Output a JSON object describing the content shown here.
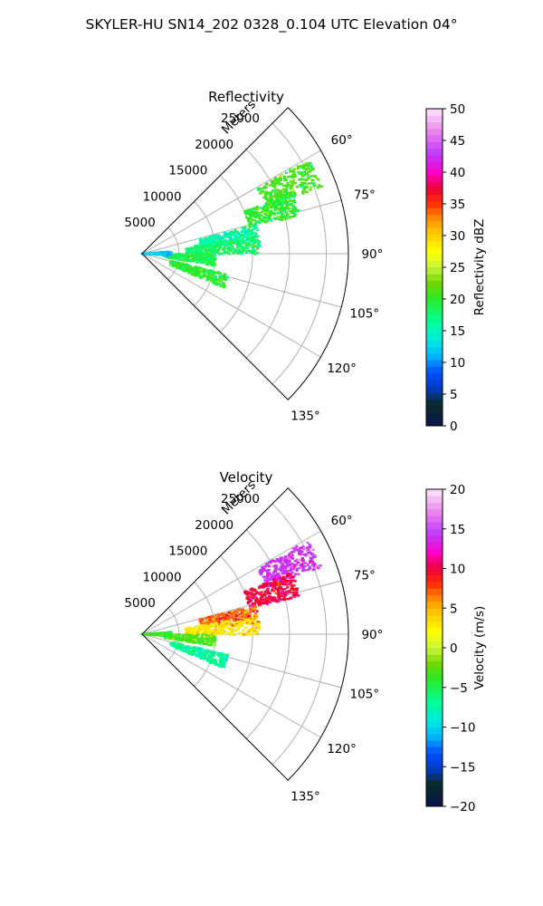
{
  "figure_title": "SKYLER-HU  SN14_202  0328_0.104 UTC Elevation 04°",
  "chart_data": [
    {
      "type": "heatmap",
      "projection": "polar-sector",
      "title": "Reflectivity",
      "radial_axis_label": "Meters",
      "radial_ticks": [
        5000,
        10000,
        15000,
        20000,
        25000
      ],
      "radial_tick_labels": [
        "5000",
        "10000",
        "15000",
        "20000",
        "25000"
      ],
      "rlim": [
        0,
        28000
      ],
      "azimuth_range_deg": [
        45,
        135
      ],
      "azimuth_ticks_deg": [
        60,
        75,
        90,
        105,
        120,
        135
      ],
      "azimuth_tick_labels": [
        "60°",
        "75°",
        "90°",
        "105°",
        "120°",
        "135°"
      ],
      "grid": true,
      "colorbar": {
        "label": "Reflectivity dBZ",
        "range": [
          0,
          50
        ],
        "ticks": [
          0,
          5,
          10,
          15,
          20,
          25,
          30,
          35,
          40,
          45,
          50
        ],
        "tick_labels": [
          "0",
          "5",
          "10",
          "15",
          "20",
          "25",
          "30",
          "35",
          "40",
          "45",
          "50"
        ]
      },
      "echo_regions": [
        {
          "az": 65,
          "r": [
            18000,
            26000
          ],
          "value": 21
        },
        {
          "az": 72,
          "r": [
            15000,
            22000
          ],
          "value": 20
        },
        {
          "az": 80,
          "r": [
            8000,
            16000
          ],
          "value": 16
        },
        {
          "az": 86,
          "r": [
            6000,
            16000
          ],
          "value": 18
        },
        {
          "az": 95,
          "r": [
            3000,
            10000
          ],
          "value": 19
        },
        {
          "az": 108,
          "r": [
            4000,
            12000
          ],
          "value": 20
        },
        {
          "az": 90,
          "r": [
            0,
            4000
          ],
          "value": 12
        }
      ]
    },
    {
      "type": "heatmap",
      "projection": "polar-sector",
      "title": "Velocity",
      "radial_axis_label": "Meters",
      "radial_ticks": [
        5000,
        10000,
        15000,
        20000,
        25000
      ],
      "radial_tick_labels": [
        "5000",
        "10000",
        "15000",
        "20000",
        "25000"
      ],
      "rlim": [
        0,
        28000
      ],
      "azimuth_range_deg": [
        45,
        135
      ],
      "azimuth_ticks_deg": [
        60,
        75,
        90,
        105,
        120,
        135
      ],
      "azimuth_tick_labels": [
        "60°",
        "75°",
        "90°",
        "105°",
        "120°",
        "135°"
      ],
      "grid": true,
      "colorbar": {
        "label": "Velocity (m/s)",
        "range": [
          -20,
          20
        ],
        "ticks": [
          -20,
          -15,
          -10,
          -5,
          0,
          5,
          10,
          15,
          20
        ],
        "tick_labels": [
          "−20",
          "−15",
          "−10",
          "−5",
          "0",
          "5",
          "10",
          "15",
          "20"
        ]
      },
      "echo_regions": [
        {
          "az": 65,
          "r": [
            18000,
            26000
          ],
          "value": 14
        },
        {
          "az": 72,
          "r": [
            15000,
            22000
          ],
          "value": 10
        },
        {
          "az": 80,
          "r": [
            8000,
            16000
          ],
          "value": 7
        },
        {
          "az": 86,
          "r": [
            6000,
            16000
          ],
          "value": 3
        },
        {
          "az": 95,
          "r": [
            3000,
            10000
          ],
          "value": -3
        },
        {
          "az": 108,
          "r": [
            4000,
            12000
          ],
          "value": -7
        },
        {
          "az": 90,
          "r": [
            0,
            4000
          ],
          "value": -4
        }
      ]
    }
  ],
  "colors": {
    "grid": "#b0b0b0",
    "frame": "#000000"
  }
}
